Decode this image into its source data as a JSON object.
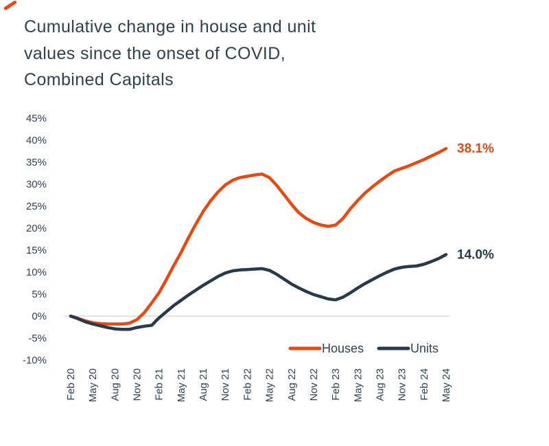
{
  "logo": {
    "color": "#E8490F"
  },
  "title": {
    "line1": "Cumulative change in house and unit",
    "line2": "values since the onset of COVID,",
    "line3": "Combined Capitals"
  },
  "colors": {
    "houses": "#E8490F",
    "units": "#27394A",
    "text": "#2E4153",
    "gridline": "#DBDBDB"
  },
  "chart_data": {
    "type": "line",
    "title": "Cumulative change in house and unit values since the onset of COVID, Combined Capitals",
    "x_frequency": "monthly",
    "x_start": "Feb 20",
    "x_end": "May 24",
    "x_tick_labels": [
      "Feb 20",
      "May 20",
      "Aug 20",
      "Nov 20",
      "Feb 21",
      "May 21",
      "Aug 21",
      "Nov 21",
      "Feb 22",
      "May 22",
      "Aug 22",
      "Nov 22",
      "Feb 23",
      "May 23",
      "Aug 23",
      "Nov 23",
      "Feb 24",
      "May 24"
    ],
    "x_ticks_every_n_months": 3,
    "y_tick_labels": [
      "45%",
      "40%",
      "35%",
      "30%",
      "25%",
      "20%",
      "15%",
      "10%",
      "5%",
      "0%",
      "-5%",
      "-10%"
    ],
    "ylim": [
      -10,
      45
    ],
    "grid": "zero-line-only",
    "legend_position": "bottom-right",
    "series": [
      {
        "name": "Houses",
        "color": "#E8490F",
        "end_label": "38.1%",
        "values": [
          0.0,
          -0.5,
          -1.1,
          -1.5,
          -1.7,
          -1.8,
          -1.8,
          -1.8,
          -1.6,
          -0.8,
          0.8,
          3.0,
          5.3,
          8.3,
          11.5,
          14.5,
          17.8,
          20.9,
          23.8,
          26.2,
          28.2,
          29.8,
          30.9,
          31.5,
          31.8,
          32.1,
          32.3,
          31.5,
          29.7,
          27.6,
          25.4,
          23.5,
          22.2,
          21.3,
          20.7,
          20.4,
          20.7,
          22.2,
          24.4,
          26.3,
          28.0,
          29.4,
          30.7,
          31.9,
          33.0,
          33.6,
          34.2,
          34.9,
          35.6,
          36.4,
          37.2,
          38.1
        ]
      },
      {
        "name": "Units",
        "color": "#27394A",
        "end_label": "14.0%",
        "values": [
          0.0,
          -0.6,
          -1.3,
          -1.8,
          -2.2,
          -2.6,
          -2.9,
          -3.0,
          -3.0,
          -2.6,
          -2.3,
          -2.1,
          -0.4,
          1.0,
          2.4,
          3.6,
          4.8,
          5.9,
          7.0,
          8.0,
          9.0,
          9.8,
          10.3,
          10.5,
          10.6,
          10.7,
          10.8,
          10.4,
          9.5,
          8.4,
          7.3,
          6.4,
          5.6,
          4.9,
          4.4,
          3.9,
          3.7,
          4.3,
          5.3,
          6.4,
          7.4,
          8.3,
          9.2,
          10.0,
          10.7,
          11.1,
          11.3,
          11.4,
          11.8,
          12.4,
          13.1,
          14.0
        ]
      }
    ]
  }
}
